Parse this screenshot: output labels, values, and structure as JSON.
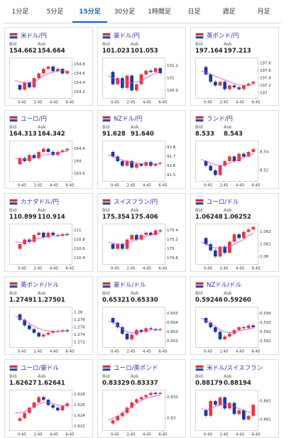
{
  "tabs": [
    "1分足",
    "5分足",
    "15分足",
    "30分足",
    "1時間足",
    "日足",
    "週足",
    "月足"
  ],
  "active_tab": 2,
  "labels": {
    "bid": "Bid",
    "ask": "Ask"
  },
  "x_labels": [
    "0:45",
    "2:45",
    "4:45",
    "6:45"
  ],
  "quotes": [
    {
      "type": "candlestick",
      "name": "米ドル/円",
      "bid": "154.662",
      "ask": "154.664",
      "ylim": [
        154.1,
        154.9
      ],
      "yticks": [
        154.8,
        154.6,
        154.4,
        154.2
      ],
      "values": [
        154.35,
        154.25,
        154.4,
        154.3,
        154.5,
        154.6,
        154.7,
        154.75,
        154.65,
        154.7,
        154.6,
        154.65
      ],
      "ma": [
        154.45,
        154.42,
        154.4,
        154.4,
        154.42,
        154.48,
        154.55,
        154.6,
        154.63,
        154.65,
        154.66,
        154.65
      ]
    },
    {
      "type": "candlestick",
      "name": "豪ドル/円",
      "bid": "101.023",
      "ask": "101.053",
      "ylim": [
        100.85,
        101.15
      ],
      "yticks": [
        101.1,
        101,
        100.9
      ],
      "values": [
        101.05,
        100.95,
        101.0,
        100.92,
        101.02,
        100.9,
        100.95,
        101.03,
        101.06,
        101.05,
        101.08,
        101.04
      ],
      "ma": [
        101.02,
        101.0,
        100.98,
        100.97,
        100.97,
        100.96,
        100.97,
        100.98,
        101.0,
        101.02,
        101.04,
        101.05
      ]
    },
    {
      "type": "candlestick",
      "name": "英ポンド/円",
      "bid": "197.164",
      "ask": "197.213",
      "ylim": [
        196.9,
        197.9
      ],
      "yticks": [
        197.8,
        197.6,
        197.4,
        197.2,
        197
      ],
      "values": [
        197.7,
        197.5,
        197.3,
        197.2,
        197.3,
        197.1,
        197.2,
        197.15,
        197.1,
        197.2,
        197.25,
        197.3
      ],
      "ma": [
        197.6,
        197.55,
        197.5,
        197.45,
        197.4,
        197.35,
        197.3,
        197.25,
        197.22,
        197.2,
        197.2,
        197.22
      ]
    },
    {
      "type": "candlestick",
      "name": "ユーロ/円",
      "bid": "164.313",
      "ask": "164.342",
      "ylim": [
        163.4,
        164.6
      ],
      "yticks": [
        164.4,
        164,
        163.6
      ],
      "values": [
        163.9,
        164.1,
        164.0,
        164.2,
        164.1,
        164.3,
        164.4,
        164.3,
        164.2,
        164.3,
        164.35,
        164.4
      ],
      "ma": [
        164.1,
        164.05,
        164.05,
        164.08,
        164.1,
        164.15,
        164.2,
        164.22,
        164.25,
        164.27,
        164.3,
        164.32
      ]
    },
    {
      "type": "candlestick",
      "name": "NZドル/円",
      "bid": "91.628",
      "ask": "91.640",
      "ylim": [
        91.45,
        91.85
      ],
      "yticks": [
        91.8,
        91.7,
        91.6,
        91.5
      ],
      "values": [
        91.75,
        91.7,
        91.65,
        91.6,
        91.65,
        91.58,
        91.62,
        91.6,
        91.64,
        91.6,
        91.62,
        91.63
      ],
      "ma": [
        91.72,
        91.7,
        91.68,
        91.66,
        91.65,
        91.64,
        91.63,
        91.62,
        91.62,
        91.62,
        91.62,
        91.62
      ]
    },
    {
      "type": "candlestick",
      "name": "ランド/円",
      "bid": "8.533",
      "ask": "8.543",
      "ylim": [
        8.51,
        8.55
      ],
      "yticks": [
        8.54,
        8.52
      ],
      "values": [
        8.53,
        8.525,
        8.52,
        8.515,
        8.525,
        8.53,
        8.535,
        8.53,
        8.538,
        8.535,
        8.54,
        8.543
      ],
      "ma": [
        8.532,
        8.53,
        8.528,
        8.526,
        8.525,
        8.526,
        8.528,
        8.53,
        8.532,
        8.534,
        8.536,
        8.538
      ]
    },
    {
      "type": "candlestick",
      "name": "カナダドル/円",
      "bid": "110.899",
      "ask": "110.914",
      "ylim": [
        110.3,
        111.1
      ],
      "yticks": [
        111,
        110.8,
        110.6,
        110.4
      ],
      "values": [
        110.6,
        110.7,
        110.8,
        110.75,
        110.9,
        110.95,
        110.85,
        110.95,
        110.9,
        110.88,
        110.92,
        110.9
      ],
      "ma": [
        110.75,
        110.74,
        110.75,
        110.77,
        110.8,
        110.83,
        110.85,
        110.87,
        110.88,
        110.89,
        110.9,
        110.9
      ]
    },
    {
      "type": "candlestick",
      "name": "スイスフラン/円",
      "bid": "175.354",
      "ask": "175.406",
      "ylim": [
        174.7,
        175.5
      ],
      "yticks": [
        175.4,
        175.2,
        175,
        174.8
      ],
      "values": [
        175.1,
        175.0,
        175.1,
        175.0,
        175.2,
        175.3,
        175.2,
        175.3,
        175.35,
        175.3,
        175.4,
        175.38
      ],
      "ma": [
        175.15,
        175.12,
        175.1,
        175.1,
        175.12,
        175.16,
        175.2,
        175.24,
        175.27,
        175.3,
        175.32,
        175.35
      ]
    },
    {
      "type": "candlestick",
      "name": "ユーロ/ドル",
      "bid": "1.06248",
      "ask": "1.06252",
      "ylim": [
        1.0595,
        1.0625
      ],
      "yticks": [
        1.062,
        1.061,
        1.06
      ],
      "values": [
        1.0615,
        1.061,
        1.0605,
        1.06,
        1.0608,
        1.0603,
        1.0612,
        1.0618,
        1.0615,
        1.062,
        1.0622,
        1.0624
      ],
      "ma": [
        1.0612,
        1.061,
        1.0608,
        1.0607,
        1.0607,
        1.0607,
        1.0608,
        1.061,
        1.0612,
        1.0614,
        1.0617,
        1.0619
      ]
    },
    {
      "type": "candlestick",
      "name": "英ポンド/ドル",
      "bid": "1.27491",
      "ask": "1.27501",
      "ylim": [
        1.271,
        1.281
      ],
      "yticks": [
        1.28,
        1.278,
        1.276,
        1.274,
        1.272
      ],
      "values": [
        1.2795,
        1.278,
        1.2765,
        1.2755,
        1.2745,
        1.2735,
        1.274,
        1.2745,
        1.275,
        1.2748,
        1.2752,
        1.2749
      ],
      "ma": [
        1.279,
        1.2785,
        1.2778,
        1.277,
        1.2763,
        1.2756,
        1.2752,
        1.275,
        1.2749,
        1.2749,
        1.275,
        1.275
      ]
    },
    {
      "type": "candlestick",
      "name": "豪ドル/ドル",
      "bid": "0.65321",
      "ask": "0.65330",
      "ylim": [
        0.6515,
        0.6555
      ],
      "yticks": [
        0.655,
        0.654,
        0.653,
        0.652
      ],
      "values": [
        0.6545,
        0.654,
        0.6535,
        0.6528,
        0.6522,
        0.6527,
        0.6532,
        0.653,
        0.6534,
        0.6533,
        0.6532,
        0.6533
      ],
      "ma": [
        0.6542,
        0.654,
        0.6537,
        0.6533,
        0.653,
        0.6529,
        0.6529,
        0.653,
        0.6531,
        0.6532,
        0.6532,
        0.6532
      ]
    },
    {
      "type": "candlestick",
      "name": "NZドル/ドル",
      "bid": "0.59246",
      "ask": "0.59260",
      "ylim": [
        0.5905,
        0.5945
      ],
      "yticks": [
        0.594,
        0.593,
        0.592,
        0.591
      ],
      "values": [
        0.5935,
        0.593,
        0.5925,
        0.592,
        0.5912,
        0.5915,
        0.5918,
        0.5922,
        0.5925,
        0.5924,
        0.5927,
        0.5925
      ],
      "ma": [
        0.5935,
        0.5932,
        0.5929,
        0.5926,
        0.5922,
        0.592,
        0.5919,
        0.592,
        0.5921,
        0.5922,
        0.5923,
        0.5924
      ]
    },
    {
      "type": "candlestick",
      "name": "ユーロ/豪ドル",
      "bid": "1.62627",
      "ask": "1.62641",
      "ylim": [
        1.6215,
        1.6285
      ],
      "yticks": [
        1.628,
        1.626,
        1.624,
        1.622
      ],
      "values": [
        1.623,
        1.6235,
        1.6245,
        1.6255,
        1.6265,
        1.6275,
        1.627,
        1.626,
        1.6255,
        1.625,
        1.6258,
        1.6263
      ],
      "ma": [
        1.6245,
        1.6245,
        1.6248,
        1.6252,
        1.6257,
        1.6262,
        1.6265,
        1.6265,
        1.6263,
        1.626,
        1.6259,
        1.6259
      ]
    },
    {
      "type": "candlestick",
      "name": "ユーロ/英ポンド",
      "bid": "0.83329",
      "ask": "0.83337",
      "ylim": [
        0.829,
        0.8325
      ],
      "yticks": [
        0.832,
        0.83
      ],
      "values": [
        0.8295,
        0.8298,
        0.8302,
        0.8305,
        0.831,
        0.8315,
        0.8318,
        0.832,
        0.8322,
        0.8324,
        0.8323,
        0.8324
      ],
      "ma": [
        0.8298,
        0.83,
        0.8302,
        0.8305,
        0.8308,
        0.8311,
        0.8314,
        0.8317,
        0.8319,
        0.832,
        0.8321,
        0.8322
      ]
    },
    {
      "type": "candlestick",
      "name": "米ドル/スイスフラン",
      "bid": "0.88179",
      "ask": "0.88194",
      "ylim": [
        0.8805,
        0.8825
      ],
      "yticks": [
        0.882,
        0.881
      ],
      "values": [
        0.8815,
        0.8812,
        0.882,
        0.8818,
        0.8822,
        0.8816,
        0.8819,
        0.8813,
        0.8815,
        0.881,
        0.8812,
        0.8818
      ],
      "ma": [
        0.8816,
        0.8815,
        0.8816,
        0.8817,
        0.8818,
        0.8818,
        0.8818,
        0.8817,
        0.8816,
        0.8815,
        0.8814,
        0.8814
      ]
    }
  ]
}
